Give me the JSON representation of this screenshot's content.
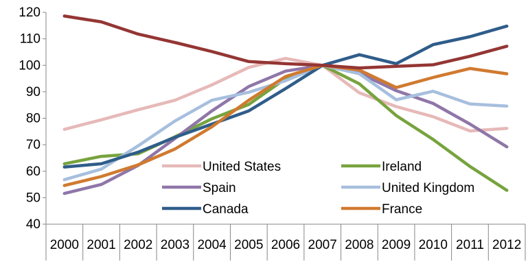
{
  "chart_data": {
    "type": "line",
    "title": "",
    "xlabel": "",
    "ylabel": "",
    "categories": [
      "2000",
      "2001",
      "2002",
      "2003",
      "2004",
      "2005",
      "2006",
      "2007",
      "2008",
      "2009",
      "2010",
      "2011",
      "2012"
    ],
    "ylim": [
      40,
      120
    ],
    "yticks": [
      40,
      50,
      60,
      70,
      80,
      90,
      100,
      110,
      120
    ],
    "grid": false,
    "legend_position": "lower-center, inside plot",
    "series": [
      {
        "name": "United States",
        "color": "#E6B9B8",
        "values": [
          75.8,
          79.4,
          83.2,
          86.8,
          92.6,
          99.2,
          102.6,
          100.0,
          89.6,
          84.4,
          80.6,
          75.2,
          76.2
        ]
      },
      {
        "name": "Ireland",
        "color": "#77A33E",
        "values": [
          62.8,
          65.6,
          66.6,
          73.0,
          79.8,
          85.2,
          95.0,
          100.0,
          93.0,
          81.0,
          72.0,
          61.8,
          52.8
        ]
      },
      {
        "name": "Spain",
        "color": "#8F76A8",
        "values": [
          51.6,
          55.0,
          62.2,
          72.4,
          82.8,
          92.0,
          97.8,
          100.0,
          97.0,
          90.4,
          85.6,
          77.8,
          69.2
        ]
      },
      {
        "name": "United Kingdom",
        "color": "#A7BFDE",
        "values": [
          56.8,
          60.8,
          69.6,
          79.0,
          86.8,
          89.8,
          94.2,
          100.0,
          96.8,
          87.0,
          90.2,
          85.4,
          84.6
        ]
      },
      {
        "name": "Canada",
        "color": "#2F5D8A",
        "values": [
          61.6,
          62.8,
          67.2,
          72.8,
          77.8,
          82.8,
          91.2,
          100.0,
          104.0,
          100.6,
          107.8,
          110.8,
          114.8
        ]
      },
      {
        "name": "France",
        "color": "#D07A30",
        "values": [
          54.6,
          58.0,
          62.4,
          68.4,
          76.8,
          86.8,
          95.8,
          100.0,
          98.2,
          91.6,
          95.4,
          98.8,
          96.8
        ]
      },
      {
        "name": "",
        "color": "#943634",
        "values": [
          118.6,
          116.4,
          111.8,
          108.6,
          105.2,
          101.4,
          100.6,
          100.0,
          99.0,
          99.6,
          100.2,
          103.4,
          107.2
        ]
      }
    ],
    "legend_columns": [
      [
        "United States",
        "Spain",
        "Canada"
      ],
      [
        "Ireland",
        "United Kingdom",
        "France"
      ]
    ]
  }
}
